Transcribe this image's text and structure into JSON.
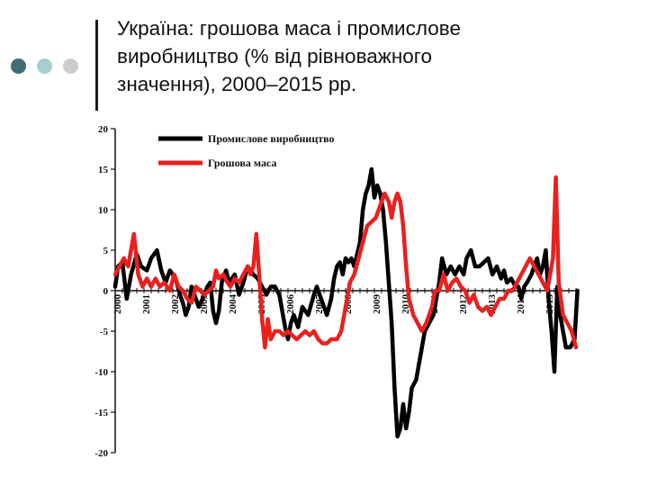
{
  "slide": {
    "title_lines": [
      "Україна: грошова маса і промислове",
      "виробництво (% від рівноважного",
      "значення), 2000–2015 рр."
    ],
    "decor_colors": [
      "#3e6e73",
      "#a6cfd2",
      "#cccccc"
    ]
  },
  "chart_data": {
    "type": "line",
    "title": "",
    "xlabel": "",
    "ylabel": "",
    "ylim": [
      -20,
      20
    ],
    "xlim": [
      2000,
      2016
    ],
    "y_ticks": [
      20,
      15,
      10,
      5,
      0,
      -5,
      -10,
      -15,
      -20
    ],
    "x_tick_labels": [
      "2000",
      "2001",
      "2002",
      "2003",
      "2004",
      "2005",
      "2006",
      "2007",
      "2008",
      "2009",
      "2010",
      "2011",
      "2012",
      "2013",
      "2014",
      "2015"
    ],
    "grid": false,
    "legend_position": "top-left",
    "series": [
      {
        "name": "Промислове виробництво",
        "color": "#000000",
        "points": [
          [
            2000.0,
            0.5
          ],
          [
            2000.1,
            3
          ],
          [
            2000.25,
            3.5
          ],
          [
            2000.4,
            -1
          ],
          [
            2000.55,
            2
          ],
          [
            2000.75,
            4.5
          ],
          [
            2000.9,
            3
          ],
          [
            2001.1,
            2.5
          ],
          [
            2001.25,
            4
          ],
          [
            2001.45,
            5
          ],
          [
            2001.6,
            2.5
          ],
          [
            2001.75,
            1
          ],
          [
            2001.9,
            2.5
          ],
          [
            2002.1,
            1.5
          ],
          [
            2002.25,
            -0.5
          ],
          [
            2002.35,
            -1.5
          ],
          [
            2002.45,
            -3
          ],
          [
            2002.55,
            -2
          ],
          [
            2002.65,
            0.5
          ],
          [
            2002.8,
            -1
          ],
          [
            2002.9,
            -2
          ],
          [
            2003.1,
            -0.5
          ],
          [
            2003.2,
            0.5
          ],
          [
            2003.3,
            1
          ],
          [
            2003.4,
            -2.5
          ],
          [
            2003.5,
            -4
          ],
          [
            2003.6,
            -2.5
          ],
          [
            2003.7,
            1
          ],
          [
            2003.85,
            2.5
          ],
          [
            2003.95,
            1
          ],
          [
            2004.15,
            2
          ],
          [
            2004.3,
            -0.5
          ],
          [
            2004.45,
            1
          ],
          [
            2004.6,
            3
          ],
          [
            2004.8,
            2
          ],
          [
            2004.95,
            1.5
          ],
          [
            2005.1,
            0.5
          ],
          [
            2005.25,
            -0.5
          ],
          [
            2005.4,
            0.5
          ],
          [
            2005.55,
            0.5
          ],
          [
            2005.7,
            -0.5
          ],
          [
            2005.9,
            -4.5
          ],
          [
            2006.0,
            -6
          ],
          [
            2006.1,
            -4
          ],
          [
            2006.2,
            -3
          ],
          [
            2006.35,
            -4.5
          ],
          [
            2006.5,
            -2
          ],
          [
            2006.7,
            -3
          ],
          [
            2006.9,
            -0.5
          ],
          [
            2007.0,
            0.5
          ],
          [
            2007.1,
            -0.5
          ],
          [
            2007.2,
            -1.5
          ],
          [
            2007.35,
            -3
          ],
          [
            2007.5,
            -1
          ],
          [
            2007.6,
            1.5
          ],
          [
            2007.7,
            3
          ],
          [
            2007.8,
            3.5
          ],
          [
            2007.9,
            2
          ],
          [
            2008.0,
            4
          ],
          [
            2008.1,
            3.5
          ],
          [
            2008.2,
            4
          ],
          [
            2008.3,
            3
          ],
          [
            2008.4,
            4.5
          ],
          [
            2008.5,
            6
          ],
          [
            2008.6,
            10
          ],
          [
            2008.7,
            12
          ],
          [
            2008.8,
            13
          ],
          [
            2008.9,
            15
          ],
          [
            2009.0,
            11.5
          ],
          [
            2009.1,
            13
          ],
          [
            2009.2,
            12
          ],
          [
            2009.3,
            10
          ],
          [
            2009.4,
            6
          ],
          [
            2009.5,
            1
          ],
          [
            2009.6,
            -4
          ],
          [
            2009.7,
            -12
          ],
          [
            2009.8,
            -18
          ],
          [
            2009.9,
            -17
          ],
          [
            2010.0,
            -14
          ],
          [
            2010.1,
            -17
          ],
          [
            2010.2,
            -15
          ],
          [
            2010.3,
            -12
          ],
          [
            2010.45,
            -11
          ],
          [
            2010.6,
            -8
          ],
          [
            2010.75,
            -5
          ],
          [
            2010.9,
            -4
          ],
          [
            2011.05,
            -3
          ],
          [
            2011.15,
            -1
          ],
          [
            2011.25,
            1
          ],
          [
            2011.35,
            4
          ],
          [
            2011.5,
            2
          ],
          [
            2011.65,
            3
          ],
          [
            2011.8,
            2
          ],
          [
            2011.95,
            3
          ],
          [
            2012.1,
            2
          ],
          [
            2012.2,
            4
          ],
          [
            2012.35,
            5
          ],
          [
            2012.5,
            3
          ],
          [
            2012.65,
            3
          ],
          [
            2012.8,
            3.5
          ],
          [
            2012.95,
            4
          ],
          [
            2013.1,
            2
          ],
          [
            2013.25,
            3
          ],
          [
            2013.4,
            1.5
          ],
          [
            2013.5,
            2.5
          ],
          [
            2013.6,
            1
          ],
          [
            2013.75,
            1.5
          ],
          [
            2013.9,
            0.5
          ],
          [
            2014.0,
            0.5
          ],
          [
            2014.1,
            -1
          ],
          [
            2014.2,
            0.5
          ],
          [
            2014.3,
            1
          ],
          [
            2014.45,
            2
          ],
          [
            2014.55,
            3
          ],
          [
            2014.65,
            4
          ],
          [
            2014.75,
            2
          ],
          [
            2014.85,
            3
          ],
          [
            2014.95,
            5
          ],
          [
            2015.05,
            -1
          ],
          [
            2015.15,
            -5
          ],
          [
            2015.25,
            -10
          ],
          [
            2015.35,
            0.5
          ],
          [
            2015.45,
            -3
          ],
          [
            2015.55,
            -5
          ],
          [
            2015.65,
            -7
          ],
          [
            2015.8,
            -7
          ],
          [
            2015.95,
            -6
          ],
          [
            2016.05,
            0
          ]
        ]
      },
      {
        "name": "Грошова маса",
        "color": "#e8211f",
        "points": [
          [
            2000.0,
            2
          ],
          [
            2000.15,
            3
          ],
          [
            2000.3,
            4
          ],
          [
            2000.45,
            3
          ],
          [
            2000.55,
            5
          ],
          [
            2000.65,
            7
          ],
          [
            2000.8,
            2
          ],
          [
            2000.95,
            0.5
          ],
          [
            2001.1,
            1.5
          ],
          [
            2001.25,
            0.5
          ],
          [
            2001.4,
            1.5
          ],
          [
            2001.55,
            0.5
          ],
          [
            2001.7,
            1
          ],
          [
            2001.8,
            0.5
          ],
          [
            2001.9,
            0
          ],
          [
            2002.05,
            2
          ],
          [
            2002.2,
            0.5
          ],
          [
            2002.35,
            0
          ],
          [
            2002.5,
            -1
          ],
          [
            2002.65,
            -1.5
          ],
          [
            2002.8,
            0.5
          ],
          [
            2002.95,
            0
          ],
          [
            2003.1,
            -0.5
          ],
          [
            2003.25,
            0
          ],
          [
            2003.4,
            0.5
          ],
          [
            2003.5,
            2.5
          ],
          [
            2003.6,
            1.5
          ],
          [
            2003.75,
            2
          ],
          [
            2003.9,
            1
          ],
          [
            2004.0,
            0.5
          ],
          [
            2004.15,
            1.5
          ],
          [
            2004.3,
            1
          ],
          [
            2004.45,
            2
          ],
          [
            2004.6,
            3
          ],
          [
            2004.7,
            2
          ],
          [
            2004.8,
            3
          ],
          [
            2004.9,
            7
          ],
          [
            2005.0,
            2
          ],
          [
            2005.1,
            -3.5
          ],
          [
            2005.2,
            -7
          ],
          [
            2005.3,
            -3.5
          ],
          [
            2005.4,
            -6
          ],
          [
            2005.55,
            -5
          ],
          [
            2005.7,
            -5
          ],
          [
            2005.85,
            -5.5
          ],
          [
            2006.0,
            -5
          ],
          [
            2006.15,
            -5.5
          ],
          [
            2006.3,
            -6
          ],
          [
            2006.45,
            -5.5
          ],
          [
            2006.6,
            -5
          ],
          [
            2006.75,
            -5.5
          ],
          [
            2006.9,
            -5
          ],
          [
            2007.05,
            -6
          ],
          [
            2007.2,
            -6.5
          ],
          [
            2007.35,
            -6.5
          ],
          [
            2007.5,
            -6
          ],
          [
            2007.7,
            -6
          ],
          [
            2007.85,
            -5
          ],
          [
            2008.0,
            -2
          ],
          [
            2008.15,
            1
          ],
          [
            2008.3,
            2
          ],
          [
            2008.45,
            4
          ],
          [
            2008.6,
            6
          ],
          [
            2008.75,
            8
          ],
          [
            2008.9,
            8.5
          ],
          [
            2009.05,
            9
          ],
          [
            2009.2,
            10.5
          ],
          [
            2009.35,
            12
          ],
          [
            2009.5,
            11
          ],
          [
            2009.6,
            9
          ],
          [
            2009.7,
            11
          ],
          [
            2009.8,
            12
          ],
          [
            2009.9,
            11
          ],
          [
            2010.0,
            8
          ],
          [
            2010.1,
            3
          ],
          [
            2010.2,
            -1
          ],
          [
            2010.35,
            -3
          ],
          [
            2010.5,
            -4
          ],
          [
            2010.65,
            -5
          ],
          [
            2010.8,
            -4
          ],
          [
            2011.0,
            -2
          ],
          [
            2011.1,
            0
          ],
          [
            2011.25,
            0
          ],
          [
            2011.4,
            2
          ],
          [
            2011.55,
            0
          ],
          [
            2011.7,
            1
          ],
          [
            2011.85,
            1.5
          ],
          [
            2012.0,
            0.5
          ],
          [
            2012.15,
            0
          ],
          [
            2012.3,
            -1.5
          ],
          [
            2012.45,
            -0.5
          ],
          [
            2012.6,
            -2
          ],
          [
            2012.75,
            -2.5
          ],
          [
            2012.9,
            -2
          ],
          [
            2013.05,
            -3
          ],
          [
            2013.2,
            -2
          ],
          [
            2013.35,
            -1
          ],
          [
            2013.5,
            -1
          ],
          [
            2013.65,
            0
          ],
          [
            2013.8,
            0
          ],
          [
            2013.95,
            1
          ],
          [
            2014.1,
            2
          ],
          [
            2014.25,
            3
          ],
          [
            2014.4,
            4
          ],
          [
            2014.55,
            3
          ],
          [
            2014.7,
            2
          ],
          [
            2014.85,
            1
          ],
          [
            2015.0,
            0
          ],
          [
            2015.1,
            2
          ],
          [
            2015.2,
            4
          ],
          [
            2015.3,
            14
          ],
          [
            2015.4,
            1
          ],
          [
            2015.55,
            -3
          ],
          [
            2015.7,
            -4
          ],
          [
            2015.85,
            -5
          ],
          [
            2016.0,
            -7
          ]
        ]
      }
    ]
  }
}
